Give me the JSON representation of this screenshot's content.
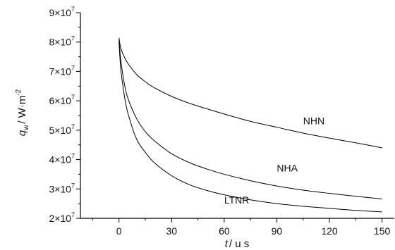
{
  "chart_data": {
    "type": "line",
    "xlabel": {
      "var": "t",
      "unit": "/ u s"
    },
    "ylabel": {
      "var": "q",
      "sub": "w",
      "unit": "/ W·m",
      "unit_sup": "-2"
    },
    "xlim": [
      -22,
      157
    ],
    "ylim": [
      20000000,
      90000000
    ],
    "x_ticks": [
      0,
      30,
      60,
      90,
      120,
      150
    ],
    "y_ticks": [
      {
        "value": 20000000,
        "mantissa": "2",
        "exp": "7"
      },
      {
        "value": 30000000,
        "mantissa": "3",
        "exp": "7"
      },
      {
        "value": 40000000,
        "mantissa": "4",
        "exp": "7"
      },
      {
        "value": 50000000,
        "mantissa": "5",
        "exp": "7"
      },
      {
        "value": 60000000,
        "mantissa": "6",
        "exp": "7"
      },
      {
        "value": 70000000,
        "mantissa": "7",
        "exp": "7"
      },
      {
        "value": 80000000,
        "mantissa": "8",
        "exp": "7"
      },
      {
        "value": 90000000,
        "mantissa": "9",
        "exp": "7"
      }
    ],
    "series": [
      {
        "name": "NHN",
        "label_at": [
          105,
          52000000
        ],
        "x": [
          0,
          1,
          3,
          5,
          10,
          15,
          20,
          30,
          40,
          50,
          60,
          75,
          90,
          105,
          120,
          135,
          150
        ],
        "y": [
          81500000,
          78000000,
          75000000,
          72800000,
          69000000,
          66500000,
          64500000,
          61500000,
          59200000,
          57300000,
          55500000,
          53000000,
          51000000,
          49000000,
          47300000,
          45700000,
          44000000
        ]
      },
      {
        "name": "NHA",
        "label_at": [
          90,
          36000000
        ],
        "x": [
          0,
          1,
          3,
          5,
          10,
          15,
          20,
          30,
          40,
          50,
          60,
          75,
          90,
          105,
          120,
          135,
          150
        ],
        "y": [
          81000000,
          74000000,
          66000000,
          61000000,
          54000000,
          49500000,
          46500000,
          42000000,
          39000000,
          36800000,
          35000000,
          32800000,
          31000000,
          29600000,
          28500000,
          27500000,
          26600000
        ]
      },
      {
        "name": "LTNR",
        "label_at": [
          60,
          25000000
        ],
        "x": [
          0,
          1,
          3,
          5,
          10,
          15,
          20,
          30,
          40,
          50,
          60,
          75,
          90,
          105,
          120,
          135,
          150
        ],
        "y": [
          80000000,
          71000000,
          62000000,
          56000000,
          47000000,
          42500000,
          39000000,
          34500000,
          31500000,
          29500000,
          28000000,
          26300000,
          25000000,
          24100000,
          23400000,
          22700000,
          22200000
        ]
      }
    ]
  }
}
